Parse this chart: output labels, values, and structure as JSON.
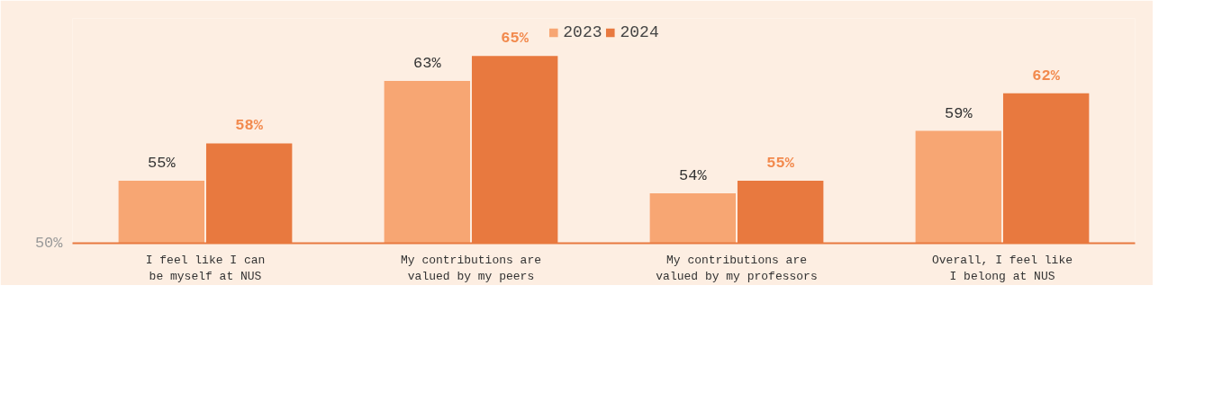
{
  "chart_data": {
    "type": "bar",
    "categories": [
      "I feel like I can\nbe myself at NUS",
      "My contributions are\nvalued by my peers",
      "My contributions are\nvalued by my professors",
      "Overall, I feel like\nI belong at NUS"
    ],
    "series": [
      {
        "name": "2023",
        "color": "#f7a673",
        "values": [
          55,
          63,
          54,
          59
        ],
        "value_labels": [
          "55%",
          "63%",
          "54%",
          "59%"
        ]
      },
      {
        "name": "2024",
        "color": "#e8793f",
        "values": [
          58,
          65,
          55,
          62
        ],
        "value_labels": [
          "58%",
          "65%",
          "55%",
          "62%"
        ]
      }
    ],
    "ylim": [
      50,
      68
    ],
    "annotations": [
      "50%"
    ],
    "legend": "top"
  }
}
